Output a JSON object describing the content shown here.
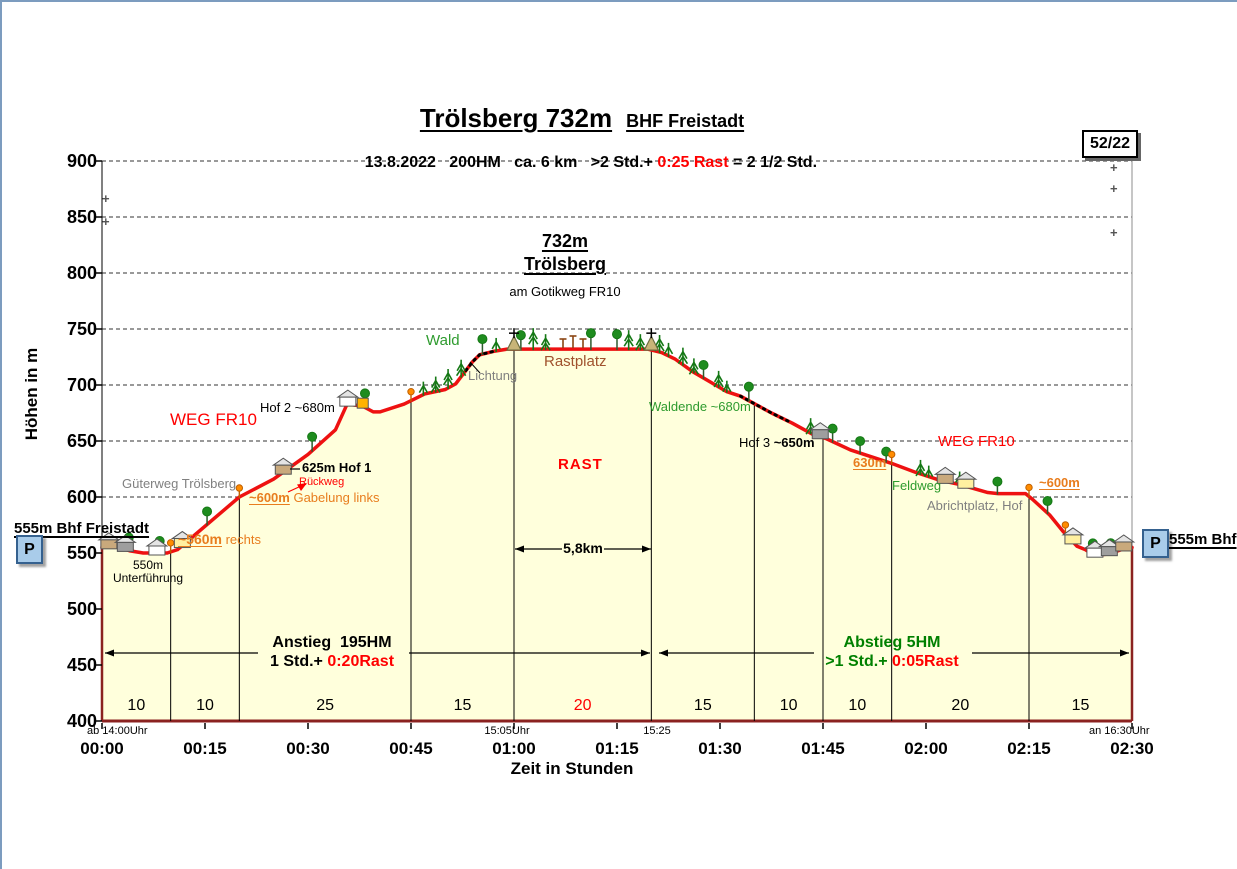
{
  "header": {
    "title": "Trölsberg 732m",
    "station": "BHF Freistadt",
    "info": "13.8.2022   200HM   ca. 6 km   >2 Std.+ ",
    "info_rast": "0:25 Rast",
    "info_end": " = 2 1/2 Std.",
    "badge": "52/22"
  },
  "axes": {
    "y_title": "Höhen in m",
    "x_title": "Zeit in Stunden",
    "y_ticks": [
      "900",
      "850",
      "800",
      "750",
      "700",
      "650",
      "600",
      "550",
      "500",
      "450",
      "400"
    ],
    "x_ticks": [
      "00:00",
      "00:15",
      "00:30",
      "00:45",
      "01:00",
      "01:15",
      "01:30",
      "01:45",
      "02:00",
      "02:15",
      "02:30"
    ],
    "sub_left": "ab 14:00Uhr",
    "sub_mid1": "15:05Uhr",
    "sub_mid2": "15:25",
    "sub_right": "an 16:30Uhr"
  },
  "summit": {
    "elev": "732m",
    "name": "Trölsberg",
    "route": "am Gotikweg FR10"
  },
  "labels": {
    "weg_fr10": "WEG FR10",
    "wald": "Wald",
    "lichtung": "Lichtung",
    "rastplatz": "Rastplatz",
    "rast": "RAST",
    "distance": "5,8km",
    "hof2": "Hof 2 ~680m",
    "hof1": "625m Hof 1",
    "rueckweg": "Rückweg",
    "gabelung_m": "~600m",
    "gabelung_txt": " Gabelung links",
    "gueterweg": "Güterweg Trölsberg",
    "rechts_m": "~560m",
    "rechts_txt": " rechts",
    "unterfuehrung1": "550m",
    "unterfuehrung2": "Unterführung",
    "start_station": "555m Bhf Freistadt",
    "end_station": "555m Bhf",
    "waldende": "Waldende ~680m",
    "hof3_a": "Hof 3 ",
    "hof3_b": "~650m",
    "m630": "630m",
    "feldweg": "Feldweg",
    "abrichtplatz": "Abrichtplatz, Hof",
    "m600_right": "~600m",
    "parking": "P",
    "plus": "+"
  },
  "ascent": {
    "title": "Anstieg  195HM",
    "time": "1 Std.+ ",
    "rast": "0:20Rast"
  },
  "descent": {
    "title": "Abstieg 5HM",
    "time": ">1 Std.+ ",
    "rast": "0:05Rast"
  },
  "colors": {
    "profile_line": "#EE1111",
    "area_fill": "#FFFFDC",
    "axis_maroon": "#8B2220",
    "orange": "#E87D1E",
    "green_text": "#2E9B2E",
    "descent_green": "#008000",
    "rast_red": "#FF0000",
    "brown": "#A0522D",
    "tree_dark": "#157815",
    "tree_round": "#1E8C1E",
    "waypoint_orange": "#FF8C00",
    "parking_blue": "#A9CCEA"
  },
  "chart_data": {
    "type": "area",
    "title": "Trölsberg 732m BHF Freistadt",
    "xlabel": "Zeit in Stunden",
    "ylabel": "Höhen in m",
    "x_minutes_range": [
      0,
      150
    ],
    "ylim": [
      400,
      900
    ],
    "grid": "dashed horizontal every 50 m",
    "profile": [
      [
        0,
        555
      ],
      [
        2,
        556
      ],
      [
        4,
        552
      ],
      [
        6,
        550
      ],
      [
        9.5,
        550
      ],
      [
        11,
        553
      ],
      [
        20,
        600
      ],
      [
        25,
        616
      ],
      [
        30,
        638
      ],
      [
        34,
        660
      ],
      [
        35.7,
        683
      ],
      [
        38,
        681
      ],
      [
        39.5,
        676
      ],
      [
        40.5,
        676
      ],
      [
        44,
        683
      ],
      [
        47,
        692
      ],
      [
        50,
        696
      ],
      [
        51.5,
        701
      ],
      [
        54,
        721
      ],
      [
        55,
        727
      ],
      [
        57,
        730
      ],
      [
        59,
        732
      ],
      [
        79.5,
        732
      ],
      [
        81.5,
        729
      ],
      [
        83.5,
        723
      ],
      [
        86,
        712
      ],
      [
        88.5,
        703
      ],
      [
        91,
        694
      ],
      [
        93,
        690
      ],
      [
        97.5,
        675
      ],
      [
        100.5,
        666
      ],
      [
        103.5,
        656
      ],
      [
        105.5,
        652
      ],
      [
        109,
        642
      ],
      [
        112,
        636
      ],
      [
        115,
        630
      ],
      [
        118.5,
        622
      ],
      [
        122,
        615
      ],
      [
        125,
        611
      ],
      [
        129,
        604
      ],
      [
        130.5,
        603
      ],
      [
        134.5,
        603
      ],
      [
        135.5,
        598
      ],
      [
        138,
        584
      ],
      [
        140,
        569
      ],
      [
        142,
        556
      ],
      [
        143.2,
        553
      ],
      [
        144.5,
        548
      ],
      [
        146.5,
        549
      ],
      [
        148,
        552
      ],
      [
        149,
        554
      ],
      [
        150,
        555
      ]
    ],
    "segments_minutes": [
      10,
      10,
      25,
      15,
      20,
      15,
      10,
      10,
      20,
      15
    ],
    "rast_segment_index": 4,
    "dotted_route_ranges_min": [
      [
        53,
        57.5
      ],
      [
        93,
        100.5
      ]
    ],
    "waypoint_marker_minutes": [
      10,
      20,
      45,
      115,
      135,
      140.3
    ],
    "waypoints": [
      {
        "t_min": 0,
        "elev_m": 555,
        "label": "Bhf Freistadt, P"
      },
      {
        "t_min": 7,
        "elev_m": 550,
        "label": "Unterführung"
      },
      {
        "t_min": 10,
        "elev_m": 560,
        "label": "~560m rechts"
      },
      {
        "t_min": 20,
        "elev_m": 600,
        "label": "~600m Gabelung links"
      },
      {
        "t_min": 27,
        "elev_m": 625,
        "label": "Hof 1"
      },
      {
        "t_min": 36,
        "elev_m": 680,
        "label": "Hof 2"
      },
      {
        "t_min": 60,
        "elev_m": 732,
        "label": "Gipfel Trölsberg, Rastplatz (Rast bis 1:20)"
      },
      {
        "t_min": 93,
        "elev_m": 680,
        "label": "Waldende"
      },
      {
        "t_min": 105,
        "elev_m": 650,
        "label": "Hof 3"
      },
      {
        "t_min": 115,
        "elev_m": 630,
        "label": "630m"
      },
      {
        "t_min": 135,
        "elev_m": 600,
        "label": "Abrichtplatz, Hof"
      },
      {
        "t_min": 150,
        "elev_m": 555,
        "label": "Bhf, P"
      }
    ],
    "summit_plateau_distance": "5,8km"
  }
}
